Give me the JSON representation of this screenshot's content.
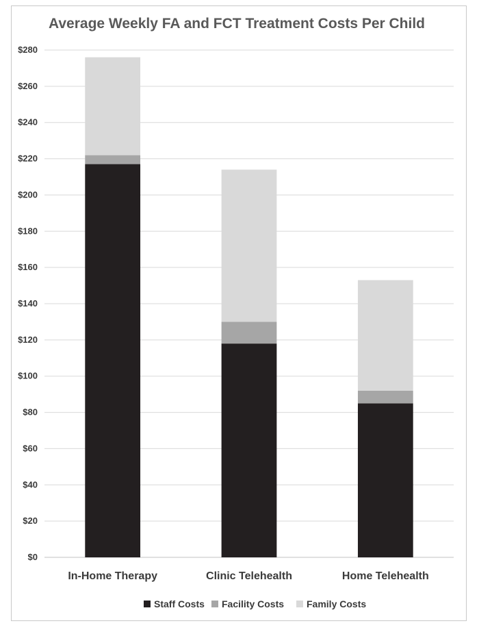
{
  "chart_data": {
    "type": "bar",
    "stacked": true,
    "title": "Average Weekly FA and FCT Treatment Costs Per Child",
    "xlabel": "",
    "ylabel": "",
    "categories": [
      "In-Home Therapy",
      "Clinic Telehealth",
      "Home Telehealth"
    ],
    "ylim": [
      0,
      280
    ],
    "ytick_step": 20,
    "ytick_prefix": "$",
    "grid": true,
    "legend_position": "bottom",
    "series": [
      {
        "name": "Staff Costs",
        "color": "#231f20",
        "values": [
          217,
          118,
          85
        ]
      },
      {
        "name": "Facility Costs",
        "color": "#a6a6a6",
        "values": [
          5,
          12,
          7
        ]
      },
      {
        "name": "Family Costs",
        "color": "#d9d9d9",
        "values": [
          54,
          84,
          61
        ]
      }
    ]
  }
}
